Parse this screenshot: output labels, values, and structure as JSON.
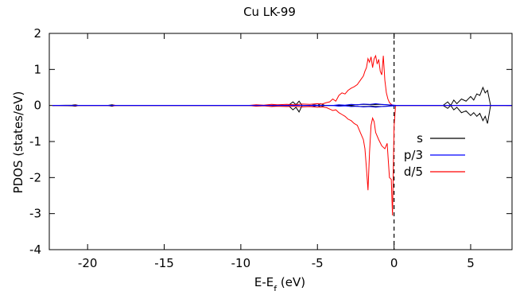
{
  "chart_data": {
    "type": "line",
    "title": "Cu LK-99",
    "xlabel_main": "E-E",
    "xlabel_sub": "f",
    "xlabel_unit": " (eV)",
    "ylabel": "PDOS (states/eV)",
    "xlim": [
      -22.5,
      7.7
    ],
    "ylim": [
      -4,
      2
    ],
    "xticks": [
      -20,
      -15,
      -10,
      -5,
      0,
      5
    ],
    "yticks": [
      -4,
      -3,
      -2,
      -1,
      0,
      1,
      2
    ],
    "x_tick_labels": [
      "-20",
      "-15",
      "-10",
      "-5",
      "0",
      "5"
    ],
    "y_tick_labels": [
      "-4",
      "-3",
      "-2",
      "-1",
      "0",
      "1",
      "2"
    ],
    "fermi_level": 0,
    "fermi_line_style": "dashed",
    "legend_position": "right-middle",
    "series": [
      {
        "name": "s",
        "color": "#000000",
        "up": [
          [
            -22.3,
            0.0
          ],
          [
            -21.0,
            0.01
          ],
          [
            -20.8,
            0.02
          ],
          [
            -20.6,
            0.0
          ],
          [
            -18.7,
            0.0
          ],
          [
            -18.4,
            0.02
          ],
          [
            -18.2,
            0.0
          ],
          [
            -8.0,
            0.0
          ],
          [
            -7.8,
            0.02
          ],
          [
            -7.6,
            0.0
          ],
          [
            -6.9,
            0.0
          ],
          [
            -6.6,
            0.1
          ],
          [
            -6.4,
            0.02
          ],
          [
            -6.2,
            0.12
          ],
          [
            -6.0,
            0.0
          ],
          [
            -5.4,
            0.0
          ],
          [
            -5.2,
            0.02
          ],
          [
            -5.0,
            0.0
          ],
          [
            -4.8,
            0.05
          ],
          [
            -4.5,
            0.0
          ],
          [
            -3.0,
            0.0
          ],
          [
            -2.5,
            0.02
          ],
          [
            -2.0,
            0.03
          ],
          [
            -1.5,
            0.02
          ],
          [
            -1.0,
            0.03
          ],
          [
            -0.5,
            0.02
          ],
          [
            0.0,
            0.0
          ],
          [
            0.3,
            0.0
          ],
          [
            3.2,
            0.0
          ],
          [
            3.5,
            0.1
          ],
          [
            3.7,
            0.0
          ],
          [
            3.9,
            0.15
          ],
          [
            4.1,
            0.05
          ],
          [
            4.4,
            0.18
          ],
          [
            4.7,
            0.12
          ],
          [
            5.0,
            0.25
          ],
          [
            5.2,
            0.15
          ],
          [
            5.4,
            0.32
          ],
          [
            5.6,
            0.28
          ],
          [
            5.8,
            0.5
          ],
          [
            5.95,
            0.35
          ],
          [
            6.1,
            0.42
          ],
          [
            6.3,
            0.0
          ],
          [
            7.7,
            0.0
          ]
        ],
        "down": [
          [
            -22.3,
            0.0
          ],
          [
            -21.0,
            -0.01
          ],
          [
            -20.8,
            -0.02
          ],
          [
            -20.6,
            0.0
          ],
          [
            -18.7,
            0.0
          ],
          [
            -18.4,
            -0.02
          ],
          [
            -18.2,
            0.0
          ],
          [
            -8.0,
            0.0
          ],
          [
            -7.8,
            -0.02
          ],
          [
            -7.6,
            0.0
          ],
          [
            -6.9,
            0.0
          ],
          [
            -6.6,
            -0.12
          ],
          [
            -6.4,
            -0.05
          ],
          [
            -6.2,
            -0.18
          ],
          [
            -6.0,
            0.0
          ],
          [
            -5.4,
            0.0
          ],
          [
            -5.2,
            -0.02
          ],
          [
            -5.0,
            0.0
          ],
          [
            -4.8,
            -0.04
          ],
          [
            -4.5,
            0.0
          ],
          [
            -3.0,
            0.0
          ],
          [
            -2.5,
            -0.02
          ],
          [
            -2.0,
            -0.03
          ],
          [
            -1.5,
            -0.02
          ],
          [
            -1.0,
            -0.03
          ],
          [
            -0.5,
            -0.02
          ],
          [
            0.0,
            0.0
          ],
          [
            0.3,
            0.0
          ],
          [
            3.2,
            0.0
          ],
          [
            3.5,
            -0.08
          ],
          [
            3.7,
            0.0
          ],
          [
            3.9,
            -0.12
          ],
          [
            4.1,
            -0.05
          ],
          [
            4.4,
            -0.2
          ],
          [
            4.7,
            -0.15
          ],
          [
            5.0,
            -0.28
          ],
          [
            5.2,
            -0.2
          ],
          [
            5.4,
            -0.3
          ],
          [
            5.6,
            -0.22
          ],
          [
            5.8,
            -0.42
          ],
          [
            5.95,
            -0.3
          ],
          [
            6.1,
            -0.5
          ],
          [
            6.3,
            0.0
          ],
          [
            7.7,
            0.0
          ]
        ]
      },
      {
        "name": "p/3",
        "color": "#0000ff",
        "up": [
          [
            -22.3,
            0.0
          ],
          [
            -5.5,
            0.0
          ],
          [
            -5.2,
            0.01
          ],
          [
            -4.8,
            0.0
          ],
          [
            -4.0,
            0.0
          ],
          [
            -3.6,
            0.02
          ],
          [
            -3.2,
            0.01
          ],
          [
            -2.8,
            0.03
          ],
          [
            -2.4,
            0.02
          ],
          [
            -2.0,
            0.04
          ],
          [
            -1.6,
            0.03
          ],
          [
            -1.2,
            0.05
          ],
          [
            -0.8,
            0.03
          ],
          [
            -0.4,
            0.02
          ],
          [
            0.0,
            0.01
          ],
          [
            0.2,
            0.0
          ],
          [
            7.7,
            0.0
          ]
        ],
        "down": [
          [
            -22.3,
            0.0
          ],
          [
            -5.5,
            0.0
          ],
          [
            -5.2,
            -0.01
          ],
          [
            -4.8,
            0.0
          ],
          [
            -4.0,
            0.0
          ],
          [
            -3.6,
            -0.02
          ],
          [
            -3.2,
            -0.01
          ],
          [
            -2.8,
            -0.03
          ],
          [
            -2.4,
            -0.02
          ],
          [
            -2.0,
            -0.04
          ],
          [
            -1.6,
            -0.03
          ],
          [
            -1.2,
            -0.05
          ],
          [
            -0.8,
            -0.03
          ],
          [
            -0.4,
            -0.02
          ],
          [
            0.0,
            -0.01
          ],
          [
            0.2,
            0.0
          ],
          [
            7.7,
            0.0
          ]
        ]
      },
      {
        "name": "d/5",
        "color": "#ff0000",
        "up": [
          [
            -22.3,
            0.0
          ],
          [
            -21.0,
            0.0
          ],
          [
            -20.8,
            0.01
          ],
          [
            -20.6,
            0.0
          ],
          [
            -18.5,
            0.0
          ],
          [
            -18.3,
            0.01
          ],
          [
            -18.1,
            0.0
          ],
          [
            -9.5,
            0.0
          ],
          [
            -9.0,
            0.02
          ],
          [
            -8.5,
            0.01
          ],
          [
            -8.0,
            0.03
          ],
          [
            -7.6,
            0.02
          ],
          [
            -7.0,
            0.03
          ],
          [
            -6.5,
            0.02
          ],
          [
            -6.0,
            0.04
          ],
          [
            -5.5,
            0.03
          ],
          [
            -5.0,
            0.05
          ],
          [
            -4.7,
            0.04
          ],
          [
            -4.4,
            0.08
          ],
          [
            -4.2,
            0.1
          ],
          [
            -4.0,
            0.18
          ],
          [
            -3.8,
            0.12
          ],
          [
            -3.6,
            0.28
          ],
          [
            -3.4,
            0.35
          ],
          [
            -3.2,
            0.32
          ],
          [
            -3.0,
            0.42
          ],
          [
            -2.8,
            0.48
          ],
          [
            -2.6,
            0.52
          ],
          [
            -2.4,
            0.58
          ],
          [
            -2.2,
            0.7
          ],
          [
            -2.0,
            0.82
          ],
          [
            -1.9,
            0.95
          ],
          [
            -1.8,
            1.05
          ],
          [
            -1.7,
            1.3
          ],
          [
            -1.6,
            1.2
          ],
          [
            -1.5,
            1.35
          ],
          [
            -1.4,
            1.05
          ],
          [
            -1.3,
            1.3
          ],
          [
            -1.2,
            1.38
          ],
          [
            -1.1,
            1.15
          ],
          [
            -1.0,
            1.28
          ],
          [
            -0.9,
            0.95
          ],
          [
            -0.8,
            0.85
          ],
          [
            -0.7,
            1.38
          ],
          [
            -0.6,
            0.7
          ],
          [
            -0.5,
            0.35
          ],
          [
            -0.4,
            0.18
          ],
          [
            -0.3,
            0.08
          ],
          [
            -0.15,
            0.02
          ],
          [
            0.0,
            0.0
          ],
          [
            7.7,
            0.0
          ]
        ],
        "down": [
          [
            -22.3,
            0.0
          ],
          [
            -21.0,
            0.0
          ],
          [
            -20.8,
            -0.01
          ],
          [
            -20.6,
            0.0
          ],
          [
            -18.5,
            0.0
          ],
          [
            -18.3,
            -0.01
          ],
          [
            -18.1,
            0.0
          ],
          [
            -9.5,
            0.0
          ],
          [
            -9.0,
            -0.02
          ],
          [
            -8.5,
            -0.01
          ],
          [
            -8.0,
            -0.03
          ],
          [
            -7.6,
            -0.02
          ],
          [
            -7.0,
            -0.03
          ],
          [
            -6.5,
            -0.02
          ],
          [
            -6.0,
            -0.04
          ],
          [
            -5.5,
            -0.03
          ],
          [
            -5.0,
            -0.05
          ],
          [
            -4.7,
            -0.04
          ],
          [
            -4.4,
            -0.06
          ],
          [
            -4.2,
            -0.1
          ],
          [
            -4.0,
            -0.14
          ],
          [
            -3.8,
            -0.12
          ],
          [
            -3.6,
            -0.2
          ],
          [
            -3.4,
            -0.25
          ],
          [
            -3.2,
            -0.3
          ],
          [
            -3.0,
            -0.38
          ],
          [
            -2.8,
            -0.42
          ],
          [
            -2.6,
            -0.5
          ],
          [
            -2.4,
            -0.55
          ],
          [
            -2.2,
            -0.75
          ],
          [
            -2.0,
            -0.95
          ],
          [
            -1.9,
            -1.2
          ],
          [
            -1.8,
            -1.75
          ],
          [
            -1.7,
            -2.35
          ],
          [
            -1.6,
            -1.3
          ],
          [
            -1.5,
            -0.55
          ],
          [
            -1.4,
            -0.35
          ],
          [
            -1.3,
            -0.45
          ],
          [
            -1.2,
            -0.75
          ],
          [
            -1.0,
            -0.95
          ],
          [
            -0.8,
            -1.12
          ],
          [
            -0.6,
            -1.2
          ],
          [
            -0.45,
            -1.05
          ],
          [
            -0.3,
            -2.0
          ],
          [
            -0.18,
            -2.05
          ],
          [
            -0.1,
            -3.05
          ],
          [
            0.0,
            -0.6
          ],
          [
            0.1,
            0.0
          ],
          [
            7.7,
            0.0
          ]
        ]
      }
    ]
  }
}
